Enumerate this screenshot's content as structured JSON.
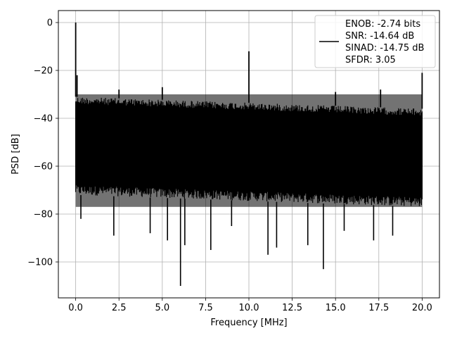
{
  "chart_data": {
    "type": "line",
    "title": "",
    "xlabel": "Frequency [MHz]",
    "ylabel": "PSD [dB]",
    "xlim": [
      -1.0,
      21.0
    ],
    "ylim": [
      -115,
      5
    ],
    "grid": true,
    "legend_placement": "upper-right",
    "xticks": [
      0.0,
      2.5,
      5.0,
      7.5,
      10.0,
      12.5,
      15.0,
      17.5,
      20.0
    ],
    "xtick_labels": [
      "0.0",
      "2.5",
      "5.0",
      "7.5",
      "10.0",
      "12.5",
      "15.0",
      "17.5",
      "20.0"
    ],
    "yticks": [
      0,
      -20,
      -40,
      -60,
      -80,
      -100
    ],
    "ytick_labels": [
      "0",
      "−20",
      "−40",
      "−60",
      "−80",
      "−100"
    ],
    "series": [
      {
        "color": "#000000",
        "noise_band": {
          "x_start": 0.0,
          "x_end": 20.0,
          "upper_start": -31,
          "upper_end": -36,
          "lower_start": -72,
          "lower_end": -77
        },
        "spikes": [
          {
            "x": 0.0,
            "y": 0
          },
          {
            "x": 0.08,
            "y": -22
          },
          {
            "x": 2.5,
            "y": -28
          },
          {
            "x": 5.0,
            "y": -27
          },
          {
            "x": 10.0,
            "y": -12
          },
          {
            "x": 15.0,
            "y": -29
          },
          {
            "x": 17.6,
            "y": -28
          },
          {
            "x": 20.0,
            "y": -21
          }
        ],
        "dips": [
          {
            "x": 0.3,
            "y": -82
          },
          {
            "x": 2.2,
            "y": -89
          },
          {
            "x": 4.3,
            "y": -88
          },
          {
            "x": 5.3,
            "y": -91
          },
          {
            "x": 6.05,
            "y": -110
          },
          {
            "x": 6.3,
            "y": -93
          },
          {
            "x": 7.8,
            "y": -95
          },
          {
            "x": 9.0,
            "y": -85
          },
          {
            "x": 11.1,
            "y": -97
          },
          {
            "x": 11.6,
            "y": -94
          },
          {
            "x": 13.4,
            "y": -93
          },
          {
            "x": 14.3,
            "y": -103
          },
          {
            "x": 15.5,
            "y": -87
          },
          {
            "x": 17.2,
            "y": -91
          },
          {
            "x": 18.3,
            "y": -89
          }
        ]
      }
    ],
    "legend": {
      "lines": [
        "ENOB: -2.74 bits",
        "SNR: -14.64 dB",
        "SINAD: -14.75 dB",
        "SFDR: 3.05"
      ]
    }
  }
}
